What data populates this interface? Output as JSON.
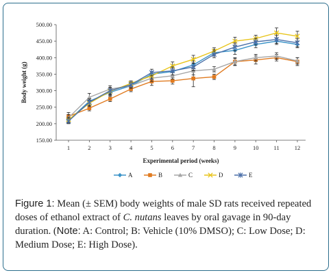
{
  "chart_data": {
    "type": "line",
    "xlabel": "Experimental  period  (weeks)",
    "ylabel": "Body weight (g)",
    "ylim": [
      150,
      500
    ],
    "yticks": [
      "150.00",
      "200.00",
      "250.00",
      "300.00",
      "350.00",
      "400.00",
      "450.00",
      "500.00"
    ],
    "x": [
      1,
      2,
      3,
      4,
      5,
      6,
      7,
      8,
      9,
      10,
      11,
      12
    ],
    "grid": false,
    "legend_position": "bottom",
    "error_bars": true,
    "series": [
      {
        "name": "A",
        "color": "#3a93c8",
        "marker": "diamond",
        "values": [
          210,
          268,
          295,
          315,
          350,
          358,
          378,
          415,
          422,
          440,
          450,
          440
        ],
        "sem": [
          8,
          10,
          10,
          8,
          8,
          10,
          12,
          10,
          12,
          10,
          10,
          10
        ]
      },
      {
        "name": "B",
        "color": "#e07a1f",
        "marker": "square",
        "values": [
          222,
          247,
          275,
          305,
          328,
          330,
          337,
          342,
          388,
          393,
          400,
          388
        ],
        "sem": [
          12,
          8,
          8,
          8,
          12,
          10,
          25,
          8,
          12,
          12,
          10,
          12
        ]
      },
      {
        "name": "C",
        "color": "#a6a6a6",
        "marker": "triangle",
        "values": [
          218,
          280,
          305,
          315,
          338,
          345,
          360,
          365,
          388,
          400,
          405,
          390
        ],
        "sem": [
          10,
          12,
          10,
          8,
          10,
          10,
          12,
          8,
          10,
          10,
          10,
          10
        ]
      },
      {
        "name": "D",
        "color": "#e8c41a",
        "marker": "x",
        "values": [
          212,
          262,
          298,
          322,
          345,
          375,
          395,
          420,
          450,
          458,
          475,
          465
        ],
        "sem": [
          8,
          10,
          10,
          8,
          10,
          12,
          12,
          10,
          12,
          10,
          15,
          15
        ]
      },
      {
        "name": "E",
        "color": "#4a6fa8",
        "marker": "star",
        "values": [
          208,
          265,
          300,
          318,
          355,
          360,
          372,
          410,
          432,
          448,
          455,
          445
        ],
        "sem": [
          8,
          10,
          10,
          8,
          10,
          12,
          12,
          10,
          12,
          10,
          12,
          12
        ]
      }
    ]
  },
  "caption": {
    "figure_label": "Figure 1:",
    "text_1": " Mean (± SEM) body weights of male SD rats received repeated doses of ethanol extract of ",
    "species": "C. nutans",
    "text_2": " leaves by oral gavage in 90-day duration. (",
    "note_label": "Note:",
    "text_3": " A: Control; B: Vehicle (10% DMSO); C: Low Dose; D: Medium Dose; E: High Dose)."
  }
}
